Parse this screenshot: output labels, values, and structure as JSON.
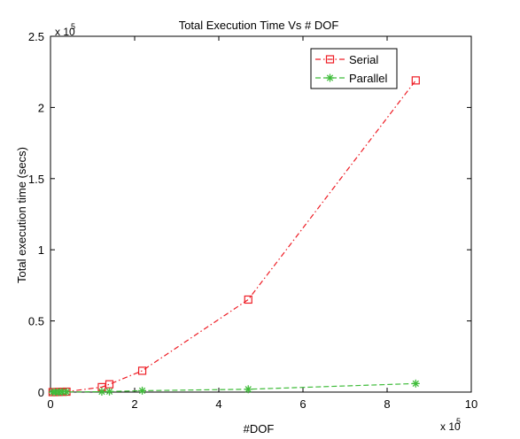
{
  "chart_data": {
    "type": "line",
    "title": "Total Execution Time Vs # DOF",
    "xlabel": "#DOF",
    "ylabel": "Total execution time (secs)",
    "x_multiplier": "x 10",
    "x_exponent": "5",
    "y_multiplier": "x 10",
    "y_exponent": "5",
    "xlim": [
      0,
      10
    ],
    "ylim": [
      0,
      2.5
    ],
    "xticks": [
      0,
      2,
      4,
      6,
      8,
      10
    ],
    "xtick_labels": [
      "0",
      "2",
      "4",
      "6",
      "8",
      "10"
    ],
    "yticks": [
      0,
      0.5,
      1,
      1.5,
      2,
      2.5
    ],
    "ytick_labels": [
      "0",
      "0.5",
      "1",
      "1.5",
      "2",
      "2.5"
    ],
    "grid": false,
    "legend_position": "top-right",
    "series": [
      {
        "name": "Serial",
        "color": "#ee1c24",
        "line_style": "dash-dot",
        "marker": "square",
        "x": [
          0.05,
          0.12,
          0.2,
          0.28,
          0.38,
          1.22,
          1.4,
          2.18,
          4.7,
          8.68
        ],
        "y": [
          0.0,
          0.0,
          0.001,
          0.002,
          0.003,
          0.035,
          0.055,
          0.15,
          0.65,
          2.19
        ]
      },
      {
        "name": "Parallel",
        "color": "#3fbc3a",
        "line_style": "dashed",
        "marker": "star",
        "x": [
          0.05,
          0.12,
          0.2,
          0.28,
          0.38,
          1.22,
          1.4,
          2.18,
          4.7,
          8.68
        ],
        "y": [
          0.0,
          0.0,
          0.0,
          0.001,
          0.001,
          0.003,
          0.004,
          0.01,
          0.02,
          0.06
        ]
      }
    ]
  }
}
